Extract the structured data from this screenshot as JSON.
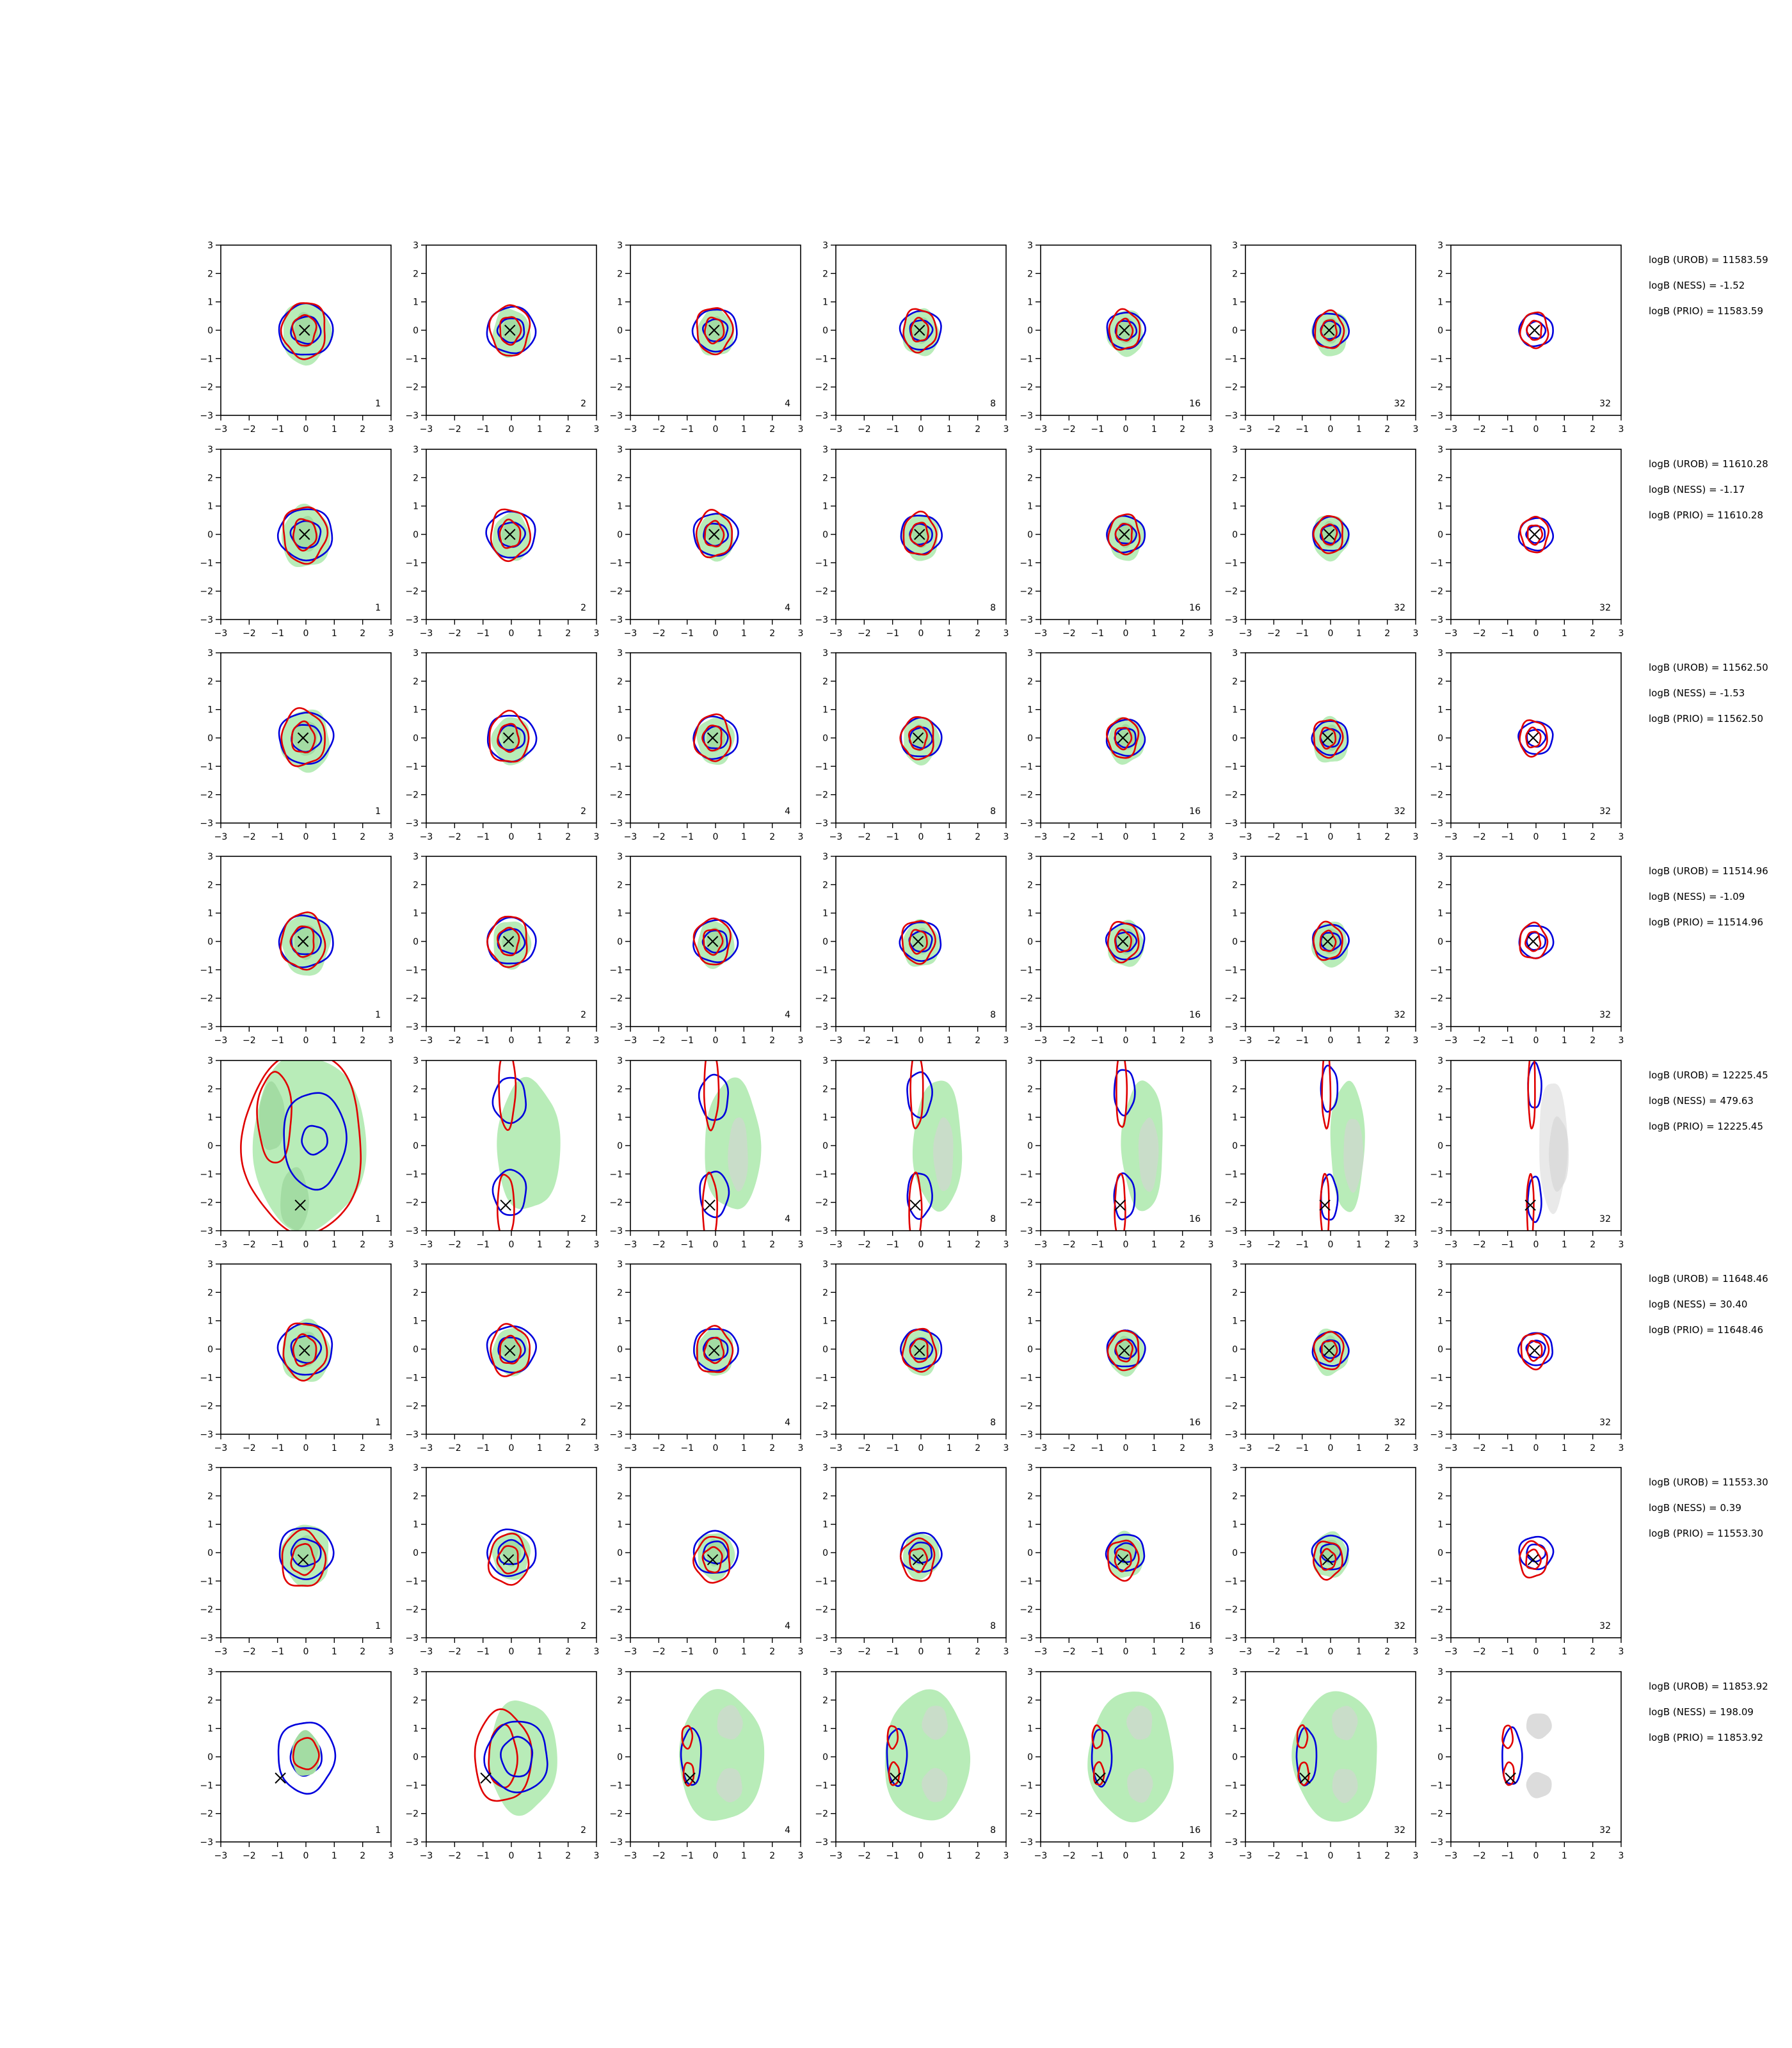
{
  "chart_data": {
    "type": "contour-grid",
    "rows": 8,
    "cols": 7,
    "xlim": [
      -3,
      3
    ],
    "ylim": [
      -3,
      3
    ],
    "ticks": [
      -3,
      -2,
      -1,
      0,
      1,
      2,
      3
    ],
    "tick_labels": [
      "−3",
      "−2",
      "−1",
      "0",
      "1",
      "2",
      "3"
    ],
    "panel_labels": [
      "1",
      "2",
      "4",
      "8",
      "16",
      "32",
      "32"
    ],
    "colors": {
      "green_fill": "#b8ecb8",
      "green_inner": "#a3dca3",
      "gray_fill": "#d3d3d3",
      "red_contour": "#e00000",
      "blue_contour": "#0000dd",
      "marker": "#000000"
    },
    "annotations": [
      [
        "logB (UROB) = 11583.59",
        "logB (NESS) = -1.52",
        "logB (PRIO) = 11583.59"
      ],
      [
        "logB (UROB) = 11610.28",
        "logB (NESS) = -1.17",
        "logB (PRIO) = 11610.28"
      ],
      [
        "logB (UROB) = 11562.50",
        "logB (NESS) = -1.53",
        "logB (PRIO) = 11562.50"
      ],
      [
        "logB (UROB) = 11514.96",
        "logB (NESS) = -1.09",
        "logB (PRIO) = 11514.96"
      ],
      [
        "logB (UROB) = 12225.45",
        "logB (NESS) = 479.63",
        "logB (PRIO) = 12225.45"
      ],
      [
        "logB (UROB) = 11648.46",
        "logB (NESS) = 30.40",
        "logB (PRIO) = 11648.46"
      ],
      [
        "logB (UROB) = 11553.30",
        "logB (NESS) = 0.39",
        "logB (PRIO) = 11553.30"
      ],
      [
        "logB (UROB) = 11853.92",
        "logB (NESS) = 198.09",
        "logB (PRIO) = 11853.92"
      ]
    ],
    "markers": [
      [
        -0.05,
        0.0
      ],
      [
        -0.05,
        0.0
      ],
      [
        -0.1,
        0.0
      ],
      [
        -0.1,
        0.0
      ],
      [
        -0.2,
        -2.1
      ],
      [
        -0.05,
        -0.05
      ],
      [
        -0.1,
        -0.25
      ],
      [
        -0.9,
        -0.75
      ]
    ],
    "row_styles": [
      "compact",
      "compact",
      "compact",
      "compact",
      "bimodal-vertical",
      "compact",
      "compact",
      "crescent-left"
    ]
  }
}
